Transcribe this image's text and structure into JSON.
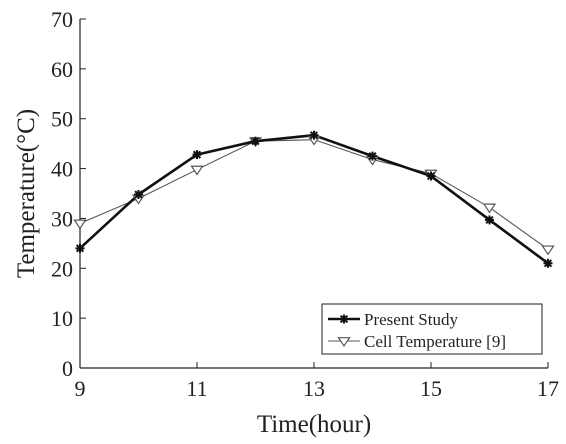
{
  "chart_data": {
    "type": "line",
    "title": "",
    "xlabel": "Time(hour)",
    "ylabel": "Temperature(°C)",
    "xlim": [
      9,
      17
    ],
    "ylim": [
      0,
      70
    ],
    "xticks": [
      "9",
      "11",
      "13",
      "15",
      "17"
    ],
    "yticks": [
      "0",
      "10",
      "20",
      "30",
      "40",
      "50",
      "60",
      "70"
    ],
    "grid": false,
    "legend_position": "bottom-right",
    "series": [
      {
        "name": "Present Study",
        "marker": "asterisk",
        "color": "#111111",
        "x": [
          9,
          10,
          11,
          12,
          13,
          14,
          15,
          16,
          17
        ],
        "y": [
          24,
          34.8,
          42.8,
          45.5,
          46.7,
          42.5,
          38.5,
          29.7,
          21
        ]
      },
      {
        "name": "Cell Temperature [9]",
        "marker": "triangle-down",
        "color": "#555555",
        "x": [
          9,
          10,
          11,
          12,
          13,
          14,
          15,
          16,
          17
        ],
        "y": [
          29,
          34,
          39.8,
          45.5,
          45.8,
          41.8,
          39,
          32.2,
          23.8
        ]
      }
    ]
  }
}
